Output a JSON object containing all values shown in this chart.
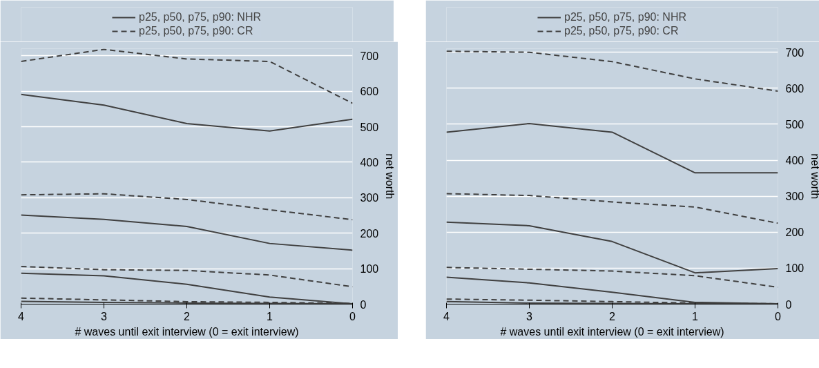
{
  "chart_data": [
    {
      "type": "line",
      "xlabel": "# waves until exit interview (0 = exit interview)",
      "ylabel": "net worth",
      "x": [
        4,
        3,
        2,
        1,
        0
      ],
      "xlim": [
        4,
        0
      ],
      "xticks": [
        4,
        3,
        2,
        1,
        0
      ],
      "ylim": [
        0,
        720
      ],
      "yticks": [
        0,
        100,
        200,
        300,
        400,
        500,
        600,
        700
      ],
      "grid": "y",
      "legend": "top",
      "series": [
        {
          "name": "p25, p50, p75, p90: NHR",
          "color": "#404040",
          "line_style": "solid",
          "values": [
            8,
            5,
            3,
            2,
            1
          ]
        },
        {
          "color": "#404040",
          "line_style": "solid",
          "values": [
            87,
            80,
            56,
            20,
            1
          ]
        },
        {
          "color": "#404040",
          "line_style": "solid",
          "values": [
            251,
            239,
            219,
            171,
            152
          ]
        },
        {
          "color": "#404040",
          "line_style": "solid",
          "values": [
            591,
            561,
            509,
            488,
            521
          ]
        },
        {
          "name": "p25, p50, p75, p90: CR",
          "color": "#404040",
          "line_style": "dashed",
          "values": [
            17,
            12,
            7,
            5,
            2
          ]
        },
        {
          "color": "#404040",
          "line_style": "dashed",
          "values": [
            106,
            97,
            95,
            82,
            49
          ]
        },
        {
          "color": "#404040",
          "line_style": "dashed",
          "values": [
            308,
            311,
            295,
            266,
            238
          ]
        },
        {
          "color": "#404040",
          "line_style": "dashed",
          "values": [
            684,
            718,
            691,
            684,
            566
          ]
        }
      ]
    },
    {
      "type": "line",
      "xlabel": "# waves until exit interview (0 = exit interview)",
      "ylabel": "net worth",
      "x": [
        4,
        3,
        2,
        1,
        0
      ],
      "xlim": [
        4,
        0
      ],
      "xticks": [
        4,
        3,
        2,
        1,
        0
      ],
      "ylim": [
        0,
        710
      ],
      "yticks": [
        0,
        100,
        200,
        300,
        400,
        500,
        600,
        700
      ],
      "grid": "y",
      "legend": "top",
      "series": [
        {
          "name": "p25, p50, p75, p90: NHR",
          "color": "#404040",
          "line_style": "solid",
          "values": [
            7,
            3,
            2,
            1,
            1
          ]
        },
        {
          "color": "#404040",
          "line_style": "solid",
          "values": [
            75,
            59,
            33,
            5,
            1
          ]
        },
        {
          "color": "#404040",
          "line_style": "solid",
          "values": [
            228,
            218,
            174,
            87,
            99
          ]
        },
        {
          "color": "#404040",
          "line_style": "solid",
          "values": [
            478,
            502,
            478,
            365,
            365
          ]
        },
        {
          "name": "p25, p50, p75, p90: CR",
          "color": "#404040",
          "line_style": "dashed",
          "values": [
            14,
            11,
            7,
            3,
            1
          ]
        },
        {
          "color": "#404040",
          "line_style": "dashed",
          "values": [
            102,
            97,
            92,
            79,
            47
          ]
        },
        {
          "color": "#404040",
          "line_style": "dashed",
          "values": [
            307,
            302,
            284,
            270,
            225
          ]
        },
        {
          "color": "#404040",
          "line_style": "dashed",
          "values": [
            703,
            700,
            674,
            626,
            592
          ]
        }
      ]
    }
  ]
}
